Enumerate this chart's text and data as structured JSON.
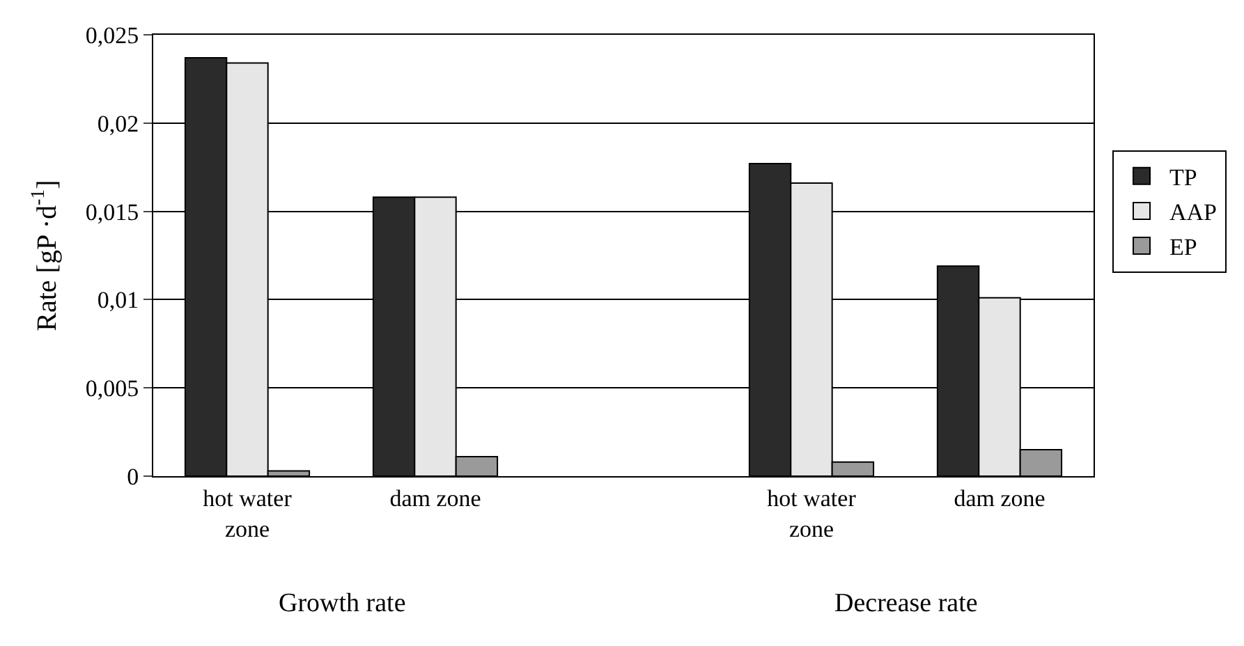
{
  "chart_data": {
    "type": "bar",
    "ylabel": "Rate [gP ·d$^{-1}$]",
    "categories": [
      "hot water zone",
      "dam zone",
      null,
      "hot water zone",
      "dam zone"
    ],
    "series": [
      {
        "name": "TP",
        "color": "#2b2b2b",
        "values": [
          0.0237,
          0.0158,
          null,
          0.0177,
          0.0119
        ]
      },
      {
        "name": "AAP",
        "color": "#e6e6e6",
        "values": [
          0.0234,
          0.0158,
          null,
          0.0166,
          0.0101
        ]
      },
      {
        "name": "EP",
        "color": "#9a9a9a",
        "values": [
          0.0003,
          0.0011,
          null,
          0.0008,
          0.0015
        ]
      }
    ],
    "ylim": [
      0,
      0.025
    ],
    "yticks": [
      {
        "value": 0,
        "label": "0"
      },
      {
        "value": 0.005,
        "label": "0,005"
      },
      {
        "value": 0.01,
        "label": "0,01"
      },
      {
        "value": 0.015,
        "label": "0,015"
      },
      {
        "value": 0.02,
        "label": "0,02"
      },
      {
        "value": 0.025,
        "label": "0,025"
      }
    ],
    "grid": "y",
    "legend": "right",
    "annotations": [
      "Growth rate",
      "Decrease rate"
    ]
  }
}
